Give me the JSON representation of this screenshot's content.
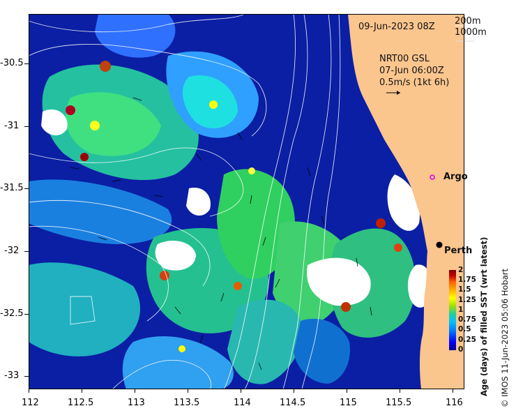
{
  "map": {
    "date_label": "09-Jun-2023 08Z",
    "contour_legend": [
      "200m",
      "1000m"
    ],
    "current_source": "NRT00 GSL",
    "current_time": "07-Jun 06:00Z",
    "current_scale": "0.5m/s (1kt 6h)",
    "markers": {
      "argo": {
        "label": "Argo",
        "lon": 115.8,
        "lat": -31.47,
        "color": "#e000e0"
      },
      "perth": {
        "label": "Perth",
        "lon": 115.86,
        "lat": -31.95
      }
    },
    "x_ticks": [
      "112",
      "112.5",
      "113",
      "113.5",
      "114",
      "114.5",
      "115",
      "115.5",
      "116"
    ],
    "y_ticks": [
      "-30.5",
      "-31",
      "-31.5",
      "-32",
      "-32.5",
      "-33"
    ],
    "extent": {
      "lon": [
        112,
        116.05
      ],
      "lat": [
        -30.05,
        -33.05
      ]
    }
  },
  "colorbar": {
    "title": "Age (days) of filled SST (wrt latest)",
    "ticks": [
      "2",
      "1.75",
      "1.5",
      "1.25",
      "1",
      "0.75",
      "0.5",
      "0.25",
      "0"
    ],
    "colors": [
      "#00008f",
      "#0000ff",
      "#0080ff",
      "#00c0ff",
      "#20d0a0",
      "#40e060",
      "#9be000",
      "#ffff00",
      "#ffb000",
      "#ff6000",
      "#c00000",
      "#800000"
    ]
  },
  "credit": "© IMOS 11-Jun-2023 05:06 Hobart",
  "colors": {
    "land": "#fbc58e",
    "ocean_deep": "#0a1fa3"
  }
}
